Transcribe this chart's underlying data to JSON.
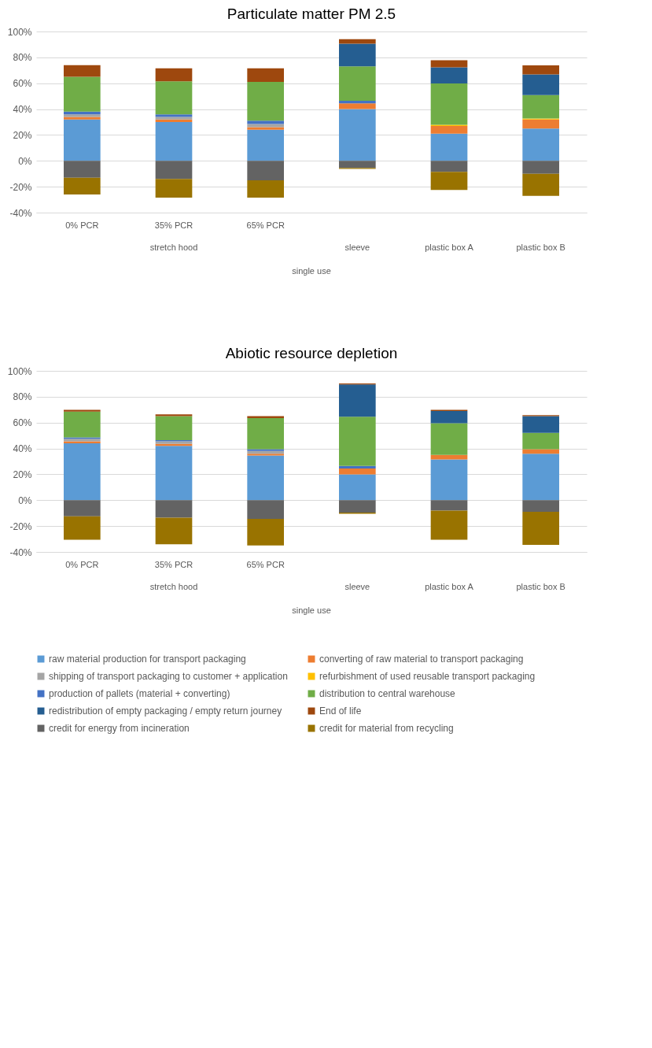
{
  "chart_data": [
    {
      "type": "bar",
      "title": "Particulate matter PM 2.5",
      "stacked": true,
      "grid": "y",
      "legend": "bottom",
      "categories": [
        "0% PCR",
        "35% PCR",
        "65% PCR",
        null,
        null,
        null
      ],
      "annotations": [
        "stretch hood",
        "sleeve",
        "plastic box A",
        "plastic box B",
        "single use"
      ],
      "ylim": [
        -40,
        100
      ],
      "yticks": [
        {
          "value": -40,
          "label": "-40%"
        },
        {
          "value": -20,
          "label": "-20%"
        },
        {
          "value": 0,
          "label": "0%"
        },
        {
          "value": 20,
          "label": "20%"
        },
        {
          "value": 40,
          "label": "40%"
        },
        {
          "value": 60,
          "label": "60%"
        },
        {
          "value": 80,
          "label": "80%"
        },
        {
          "value": 100,
          "label": "100%"
        }
      ],
      "series": [
        {
          "name": "raw material production for transport packaging",
          "color": "#5b9bd5",
          "values": [
            32,
            30,
            24,
            40,
            21,
            25
          ]
        },
        {
          "name": "converting of raw material to transport packaging",
          "color": "#ed7d31",
          "values": [
            2,
            2,
            2,
            4.5,
            6,
            7
          ]
        },
        {
          "name": "shipping of transport packaging to customer + application",
          "color": "#a5a5a5",
          "values": [
            2,
            2,
            2.5,
            null,
            null,
            null
          ]
        },
        {
          "name": "refurbishment of used reusable transport packaging",
          "color": "#ffc000",
          "values": [
            null,
            null,
            null,
            null,
            0.8,
            0.8
          ]
        },
        {
          "name": "production of pallets (material + converting)",
          "color": "#4472c4",
          "values": [
            2,
            2,
            2.5,
            2,
            null,
            null
          ]
        },
        {
          "name": "distribution to central warehouse",
          "color": "#70ad47",
          "values": [
            27,
            25.5,
            30,
            26.5,
            32,
            18
          ]
        },
        {
          "name": "redistribution of empty packaging / empty return journey",
          "color": "#255e91",
          "values": [
            null,
            null,
            null,
            17.5,
            12.5,
            16
          ]
        },
        {
          "name": "End of life",
          "color": "#9e480e",
          "values": [
            9,
            10,
            10.5,
            3.5,
            5.5,
            7
          ]
        },
        {
          "name": "credit for energy from incineration",
          "color": "#636363",
          "values": [
            -13,
            -14,
            -15,
            -5.5,
            -8.5,
            -10
          ]
        },
        {
          "name": "credit for material from recycling",
          "color": "#997300",
          "values": [
            -13,
            -14.5,
            -13.5,
            -0.7,
            -14,
            -17
          ]
        }
      ]
    },
    {
      "type": "bar",
      "title": "Abiotic resource depletion",
      "stacked": true,
      "grid": "y",
      "legend": "bottom",
      "categories": [
        "0% PCR",
        "35% PCR",
        "65% PCR",
        null,
        null,
        null
      ],
      "annotations": [
        "stretch hood",
        "sleeve",
        "plastic box A",
        "plastic box B",
        "single use"
      ],
      "ylim": [
        -40,
        100
      ],
      "yticks": [
        {
          "value": -40,
          "label": "-40%"
        },
        {
          "value": -20,
          "label": "-20%"
        },
        {
          "value": 0,
          "label": "0%"
        },
        {
          "value": 20,
          "label": "20%"
        },
        {
          "value": 40,
          "label": "40%"
        },
        {
          "value": 60,
          "label": "60%"
        },
        {
          "value": 80,
          "label": "80%"
        },
        {
          "value": 100,
          "label": "100%"
        }
      ],
      "series": [
        {
          "name": "raw material production for transport packaging",
          "color": "#5b9bd5",
          "values": [
            44,
            42,
            34.5,
            20,
            31.5,
            36
          ]
        },
        {
          "name": "converting of raw material to transport packaging",
          "color": "#ed7d31",
          "values": [
            1.5,
            1.5,
            1.5,
            4.5,
            3.5,
            3.5
          ]
        },
        {
          "name": "shipping of transport packaging to customer + application",
          "color": "#a5a5a5",
          "values": [
            2,
            2,
            2,
            null,
            null,
            null
          ]
        },
        {
          "name": "refurbishment of used reusable transport packaging",
          "color": "#ffc000",
          "values": [
            null,
            null,
            null,
            null,
            null,
            null
          ]
        },
        {
          "name": "production of pallets (material + converting)",
          "color": "#4472c4",
          "values": [
            1,
            1,
            1.5,
            2,
            null,
            null
          ]
        },
        {
          "name": "distribution to central warehouse",
          "color": "#70ad47",
          "values": [
            20,
            18.5,
            24,
            38,
            24.5,
            12.5
          ]
        },
        {
          "name": "redistribution of empty packaging / empty return journey",
          "color": "#255e91",
          "values": [
            null,
            null,
            null,
            25,
            9.5,
            13
          ]
        },
        {
          "name": "End of life",
          "color": "#9e480e",
          "values": [
            1.3,
            1.3,
            1.5,
            0.8,
            0.8,
            0.8
          ]
        },
        {
          "name": "credit for energy from incineration",
          "color": "#636363",
          "values": [
            -12.5,
            -13.5,
            -14.5,
            -9.5,
            -8,
            -9
          ]
        },
        {
          "name": "credit for material from recycling",
          "color": "#997300",
          "values": [
            -18,
            -20.5,
            -20.5,
            -1,
            -22.5,
            -25.5
          ]
        }
      ]
    }
  ]
}
